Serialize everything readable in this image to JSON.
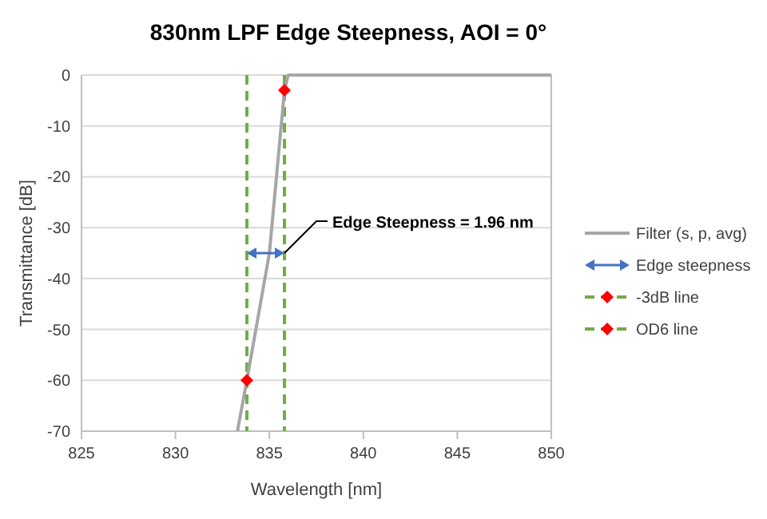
{
  "chart_data": {
    "type": "line",
    "title": "830nm LPF Edge Steepness, AOI = 0°",
    "xlabel": "Wavelength [nm]",
    "ylabel": "Transmittance [dB]",
    "xlim": [
      825,
      850
    ],
    "xticks": [
      825,
      830,
      835,
      840,
      845,
      850
    ],
    "ylim": [
      -70,
      0
    ],
    "yticks": [
      -70,
      -60,
      -50,
      -40,
      -30,
      -20,
      -10,
      0
    ],
    "grid": "y",
    "legend": "right",
    "line_style": "solid",
    "marker": "none",
    "series": [
      {
        "name": "Filter (s, p, avg)",
        "color": "#a6a6a6",
        "x": [
          833.3,
          833.8,
          835.0,
          835.8,
          836.0,
          850
        ],
        "values": [
          -70,
          -60,
          -35,
          -3,
          0,
          0
        ]
      },
      {
        "name": "-3dB line",
        "type": "scatter",
        "marker": "diamond",
        "color": "#ff0000",
        "x": [
          835.8
        ],
        "values": [
          -3
        ]
      },
      {
        "name": "OD6 line",
        "type": "scatter",
        "marker": "diamond",
        "color": "#ff0000",
        "x": [
          833.8
        ],
        "values": [
          -60
        ]
      }
    ],
    "ref_lines": [
      {
        "axis": "x",
        "value": 835.8,
        "color": "#70ad47",
        "line_style": "dashed"
      },
      {
        "axis": "x",
        "value": 833.8,
        "color": "#70ad47",
        "line_style": "dashed"
      }
    ],
    "annotations": [
      {
        "text": "Edge Steepness = 1.96 nm",
        "x": 835.8,
        "y": -35
      },
      "Edge steepness"
    ]
  }
}
